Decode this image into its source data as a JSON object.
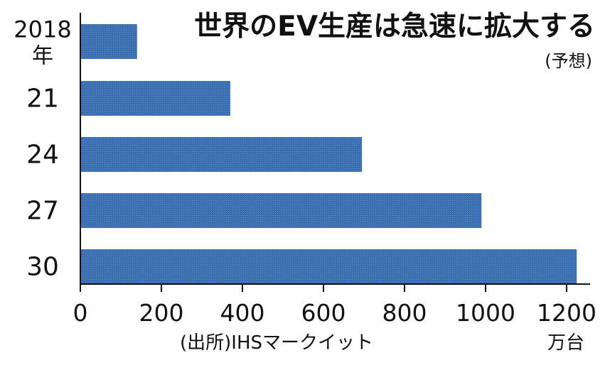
{
  "chart_data": {
    "type": "bar",
    "orientation": "horizontal",
    "title": "世界のEV生産は急速に拡大する",
    "subtitle": "(予想)",
    "categories": [
      "2018",
      "21",
      "24",
      "27",
      "30"
    ],
    "category_suffix_first": "年",
    "values": [
      140,
      370,
      695,
      990,
      1225
    ],
    "xlim": [
      0,
      1250
    ],
    "xticks": [
      "0",
      "200",
      "400",
      "600",
      "800",
      "1000",
      "1200"
    ],
    "xtick_values": [
      0,
      200,
      400,
      600,
      800,
      1000,
      1200
    ],
    "unit": "万台",
    "source": "(出所)IHSマークイット",
    "bar_color": "#3a6fb0",
    "grid": false
  }
}
